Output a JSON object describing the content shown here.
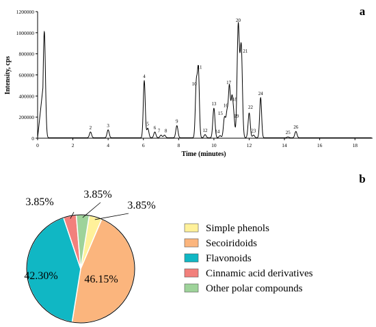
{
  "panels": {
    "a": {
      "label": "a"
    },
    "b": {
      "label": "b"
    }
  },
  "chart_data": [
    {
      "type": "line",
      "panel": "a",
      "xlabel": "Time (minutes)",
      "ylabel": "Intensity, cps",
      "xlim": [
        0,
        19
      ],
      "ylim": [
        0,
        1200000
      ],
      "x_ticks": [
        0,
        2,
        4,
        6,
        8,
        10,
        12,
        14,
        16,
        18
      ],
      "y_ticks": [
        0,
        200000,
        400000,
        600000,
        800000,
        1000000,
        1200000
      ],
      "x_tick_labels": [
        "0",
        "2",
        "4",
        "6",
        "8",
        "10",
        "12",
        "14",
        "16",
        "18"
      ],
      "y_tick_labels": [
        "0",
        "200000",
        "400000",
        "600000",
        "800000",
        "1000000",
        "1200000"
      ],
      "baseline": 0,
      "peaks": [
        {
          "label": "",
          "x": 0.38,
          "y": 1005000
        },
        {
          "label": "2",
          "x": 3.0,
          "y": 55000
        },
        {
          "label": "3",
          "x": 4.0,
          "y": 75000
        },
        {
          "label": "4",
          "x": 6.05,
          "y": 540000
        },
        {
          "label": "5",
          "x": 6.25,
          "y": 90000
        },
        {
          "label": "6",
          "x": 6.65,
          "y": 55000
        },
        {
          "label": "7",
          "x": 7.0,
          "y": 25000
        },
        {
          "label": "8",
          "x": 7.2,
          "y": 25000
        },
        {
          "label": "9",
          "x": 7.9,
          "y": 115000
        },
        {
          "label": "10",
          "x": 9.0,
          "y": 495000
        },
        {
          "label": "11",
          "x": 9.12,
          "y": 630000
        },
        {
          "label": "12",
          "x": 9.5,
          "y": 30000
        },
        {
          "label": "13",
          "x": 10.0,
          "y": 280000
        },
        {
          "label": "14",
          "x": 10.35,
          "y": 20000
        },
        {
          "label": "15",
          "x": 10.6,
          "y": 190000
        },
        {
          "label": "16",
          "x": 10.75,
          "y": 240000
        },
        {
          "label": "17",
          "x": 10.88,
          "y": 470000
        },
        {
          "label": "18",
          "x": 11.02,
          "y": 335000
        },
        {
          "label": "19",
          "x": 11.12,
          "y": 205000
        },
        {
          "label": "20",
          "x": 11.38,
          "y": 1060000
        },
        {
          "label": "21",
          "x": 11.55,
          "y": 860000
        },
        {
          "label": "22",
          "x": 12.0,
          "y": 235000
        },
        {
          "label": "23",
          "x": 12.25,
          "y": 25000
        },
        {
          "label": "24",
          "x": 12.65,
          "y": 380000
        },
        {
          "label": "25",
          "x": 14.2,
          "y": 8000
        },
        {
          "label": "26",
          "x": 14.65,
          "y": 60000
        }
      ]
    },
    {
      "type": "pie",
      "panel": "b",
      "categories": [
        "Simple phenols",
        "Secoiridoids",
        "Flavonoids",
        "Cinnamic acid derivatives",
        "Other polar compounds"
      ],
      "values": [
        3.85,
        46.15,
        42.3,
        3.85,
        3.85
      ],
      "value_labels": [
        "3.85%",
        "46.15%",
        "42.30%",
        "3.85%",
        "3.85%"
      ],
      "colors": [
        "#FFF19A",
        "#FBB57D",
        "#10B7C4",
        "#F2807C",
        "#9ED39A"
      ],
      "legend_position": "right"
    }
  ]
}
